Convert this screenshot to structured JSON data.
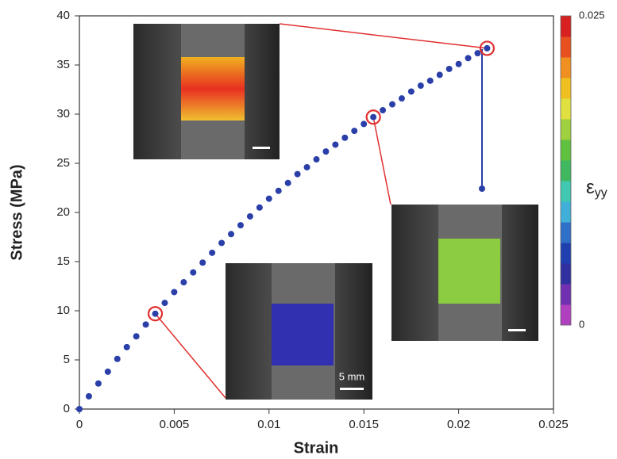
{
  "chart_data": {
    "type": "scatter",
    "x_label": "Strain",
    "y_label": "Stress (MPa)",
    "xlim": [
      0,
      0.025
    ],
    "ylim": [
      0,
      40
    ],
    "xticks": [
      0,
      0.005,
      0.01,
      0.015,
      0.02,
      0.025
    ],
    "yticks": [
      0,
      5,
      10,
      15,
      20,
      25,
      30,
      35,
      40
    ],
    "series": [
      {
        "color": "#2a3fa8",
        "x": [
          0,
          0.0005,
          0.001,
          0.0015,
          0.002,
          0.0025,
          0.003,
          0.0035,
          0.004,
          0.0045,
          0.005,
          0.0055,
          0.006,
          0.0065,
          0.007,
          0.0075,
          0.008,
          0.0085,
          0.009,
          0.0095,
          0.01,
          0.0105,
          0.011,
          0.0115,
          0.012,
          0.0125,
          0.013,
          0.0135,
          0.014,
          0.0145,
          0.015,
          0.0155,
          0.016,
          0.0165,
          0.017,
          0.0175,
          0.018,
          0.0185,
          0.019,
          0.0195,
          0.02,
          0.0205,
          0.021,
          0.0215
        ],
        "values": [
          0,
          1.3,
          2.6,
          3.8,
          5.1,
          6.3,
          7.4,
          8.6,
          9.7,
          10.8,
          11.9,
          12.9,
          13.9,
          14.9,
          15.9,
          16.9,
          17.8,
          18.7,
          19.6,
          20.5,
          21.4,
          22.2,
          23.0,
          23.9,
          24.6,
          25.4,
          26.2,
          26.9,
          27.6,
          28.3,
          29.0,
          29.7,
          30.4,
          31.0,
          31.6,
          32.3,
          32.9,
          33.4,
          34.0,
          34.6,
          35.1,
          35.7,
          36.2,
          36.7
        ]
      }
    ],
    "highlighted_points": [
      8,
      31,
      43
    ],
    "highlight_color": "#e03030",
    "colorbar": {
      "label": "ε",
      "subscript": "yy",
      "lim": [
        0,
        0.025
      ],
      "ticks": [
        0,
        0.025
      ],
      "colors": [
        "#b040c0",
        "#7030b0",
        "#3030a0",
        "#2040b0",
        "#3070c8",
        "#40b0d8",
        "#40c8b0",
        "#40b860",
        "#60c040",
        "#a0d040",
        "#e0e040",
        "#f0c020",
        "#f09020",
        "#e85020",
        "#d82020"
      ]
    },
    "annotations": {
      "scale_bar": "5 mm"
    }
  }
}
